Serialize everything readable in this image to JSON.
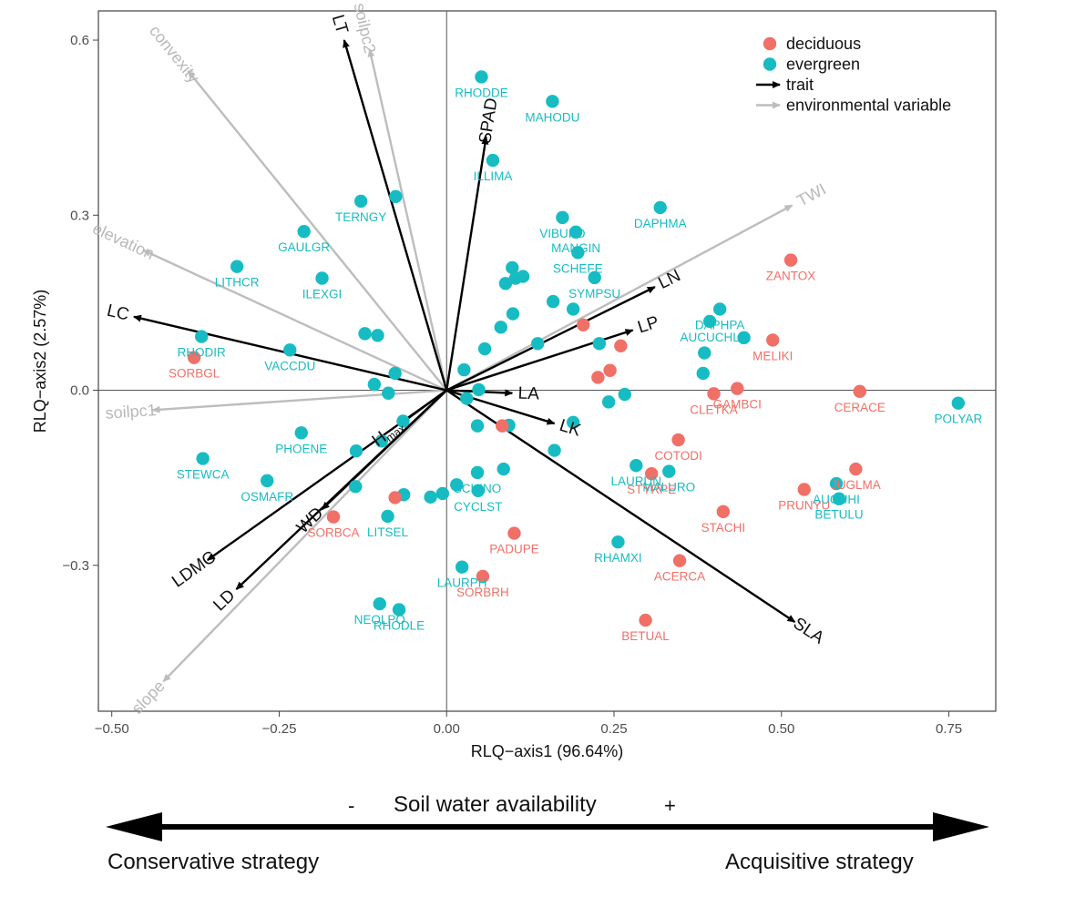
{
  "chart_data": {
    "type": "scatter",
    "xlabel": "RLQ−axis1 (96.64%)",
    "ylabel": "RLQ−axis2 (2.57%)",
    "xlim": [
      -0.52,
      0.82
    ],
    "ylim": [
      -0.55,
      0.65
    ],
    "xticks": [
      {
        "value": -0.5,
        "label": "−0.50"
      },
      {
        "value": -0.25,
        "label": "−0.25"
      },
      {
        "value": 0.0,
        "label": "0.00"
      },
      {
        "value": 0.25,
        "label": "0.25"
      },
      {
        "value": 0.5,
        "label": "0.50"
      },
      {
        "value": 0.75,
        "label": "0.75"
      }
    ],
    "yticks": [
      {
        "value": 0.6,
        "label": "0.6"
      },
      {
        "value": 0.3,
        "label": "0.3"
      },
      {
        "value": 0.0,
        "label": "0.0"
      },
      {
        "value": -0.3,
        "label": "−0.3"
      }
    ],
    "colors": {
      "deciduous": "#f07067",
      "evergreen": "#17bcc3",
      "trait": "#000000",
      "environmental": "#bdbdbd"
    },
    "legend": {
      "placement": "top-right",
      "entries": [
        {
          "kind": "deciduous",
          "label": "deciduous"
        },
        {
          "kind": "evergreen",
          "label": "evergreen"
        },
        {
          "kind": "trait",
          "label": "trait"
        },
        {
          "kind": "environmental",
          "label": "environmental variable"
        }
      ]
    },
    "species": [
      {
        "code": "RHODDE",
        "group": "evergreen",
        "x": 0.052,
        "y": 0.537
      },
      {
        "code": "MAHODU",
        "group": "evergreen",
        "x": 0.158,
        "y": 0.495
      },
      {
        "code": "ILLIMA",
        "group": "evergreen",
        "x": 0.069,
        "y": 0.394
      },
      {
        "code": "VIBUFO",
        "group": "evergreen",
        "x": 0.173,
        "y": 0.296
      },
      {
        "code": "MANGIN",
        "group": "evergreen",
        "x": 0.193,
        "y": 0.271
      },
      {
        "code": "DAPHMA",
        "group": "evergreen",
        "x": 0.319,
        "y": 0.313
      },
      {
        "code": "SCHEFE",
        "group": "evergreen",
        "x": 0.196,
        "y": 0.236
      },
      {
        "code": "SYMPSU",
        "group": "evergreen",
        "x": 0.221,
        "y": 0.193
      },
      {
        "code": "TERNGY",
        "group": "evergreen",
        "x": -0.128,
        "y": 0.324
      },
      {
        "code": "",
        "group": "evergreen",
        "x": -0.076,
        "y": 0.332
      },
      {
        "code": "GAULGR",
        "group": "evergreen",
        "x": -0.213,
        "y": 0.272
      },
      {
        "code": "LITHCR",
        "group": "evergreen",
        "x": -0.313,
        "y": 0.212
      },
      {
        "code": "ILEXGI",
        "group": "evergreen",
        "x": -0.186,
        "y": 0.192
      },
      {
        "code": "RHODIR",
        "group": "evergreen",
        "x": -0.366,
        "y": 0.092
      },
      {
        "code": "VACCDU",
        "group": "evergreen",
        "x": -0.234,
        "y": 0.069
      },
      {
        "code": "",
        "group": "evergreen",
        "x": -0.122,
        "y": 0.097
      },
      {
        "code": "",
        "group": "evergreen",
        "x": -0.103,
        "y": 0.094
      },
      {
        "code": "",
        "group": "evergreen",
        "x": -0.077,
        "y": 0.029
      },
      {
        "code": "",
        "group": "evergreen",
        "x": -0.108,
        "y": 0.01
      },
      {
        "code": "",
        "group": "evergreen",
        "x": -0.087,
        "y": -0.005
      },
      {
        "code": "",
        "group": "evergreen",
        "x": 0.098,
        "y": 0.21
      },
      {
        "code": "",
        "group": "evergreen",
        "x": 0.088,
        "y": 0.183
      },
      {
        "code": "",
        "group": "evergreen",
        "x": 0.103,
        "y": 0.192
      },
      {
        "code": "",
        "group": "evergreen",
        "x": 0.114,
        "y": 0.195
      },
      {
        "code": "",
        "group": "evergreen",
        "x": 0.099,
        "y": 0.131
      },
      {
        "code": "",
        "group": "evergreen",
        "x": 0.081,
        "y": 0.108
      },
      {
        "code": "",
        "group": "evergreen",
        "x": 0.057,
        "y": 0.071
      },
      {
        "code": "",
        "group": "evergreen",
        "x": 0.136,
        "y": 0.08
      },
      {
        "code": "",
        "group": "evergreen",
        "x": 0.159,
        "y": 0.152
      },
      {
        "code": "",
        "group": "evergreen",
        "x": 0.189,
        "y": 0.139
      },
      {
        "code": "",
        "group": "evergreen",
        "x": 0.228,
        "y": 0.08
      },
      {
        "code": "",
        "group": "evergreen",
        "x": 0.026,
        "y": 0.035
      },
      {
        "code": "",
        "group": "evergreen",
        "x": 0.048,
        "y": 0.001
      },
      {
        "code": "",
        "group": "evergreen",
        "x": 0.03,
        "y": -0.014
      },
      {
        "code": "",
        "group": "evergreen",
        "x": 0.242,
        "y": -0.02
      },
      {
        "code": "",
        "group": "evergreen",
        "x": 0.266,
        "y": -0.007
      },
      {
        "code": "",
        "group": "evergreen",
        "x": 0.046,
        "y": -0.061
      },
      {
        "code": "",
        "group": "evergreen",
        "x": 0.093,
        "y": -0.06
      },
      {
        "code": "",
        "group": "evergreen",
        "x": 0.189,
        "y": -0.055
      },
      {
        "code": "",
        "group": "evergreen",
        "x": 0.161,
        "y": -0.103
      },
      {
        "code": "DAPHPA",
        "group": "evergreen",
        "x": 0.408,
        "y": 0.139
      },
      {
        "code": "AUCUCHL",
        "group": "evergreen",
        "x": 0.393,
        "y": 0.118
      },
      {
        "code": "",
        "group": "evergreen",
        "x": 0.444,
        "y": 0.09
      },
      {
        "code": "",
        "group": "evergreen",
        "x": 0.385,
        "y": 0.064
      },
      {
        "code": "",
        "group": "evergreen",
        "x": 0.383,
        "y": 0.029
      },
      {
        "code": "POLYAR",
        "group": "evergreen",
        "x": 0.764,
        "y": -0.022
      },
      {
        "code": "LAURUN",
        "group": "evergreen",
        "x": 0.283,
        "y": -0.129
      },
      {
        "code": "MALURO",
        "group": "evergreen",
        "x": 0.332,
        "y": -0.139
      },
      {
        "code": "AUCUHI",
        "group": "evergreen",
        "x": 0.582,
        "y": -0.16
      },
      {
        "code": "BETULU",
        "group": "evergreen",
        "x": 0.586,
        "y": -0.186
      },
      {
        "code": "RHAMXI",
        "group": "evergreen",
        "x": 0.256,
        "y": -0.26
      },
      {
        "code": "SCHINO",
        "group": "evergreen",
        "x": 0.046,
        "y": -0.141
      },
      {
        "code": "",
        "group": "evergreen",
        "x": 0.085,
        "y": -0.135
      },
      {
        "code": "CYCLST",
        "group": "evergreen",
        "x": 0.047,
        "y": -0.172
      },
      {
        "code": "",
        "group": "evergreen",
        "x": 0.015,
        "y": -0.162
      },
      {
        "code": "",
        "group": "evergreen",
        "x": -0.006,
        "y": -0.177
      },
      {
        "code": "",
        "group": "evergreen",
        "x": -0.024,
        "y": -0.183
      },
      {
        "code": "",
        "group": "evergreen",
        "x": -0.065,
        "y": -0.053
      },
      {
        "code": "",
        "group": "evergreen",
        "x": -0.097,
        "y": -0.087
      },
      {
        "code": "",
        "group": "evergreen",
        "x": -0.135,
        "y": -0.104
      },
      {
        "code": "PHOENE",
        "group": "evergreen",
        "x": -0.217,
        "y": -0.073
      },
      {
        "code": "STEWCA",
        "group": "evergreen",
        "x": -0.364,
        "y": -0.117
      },
      {
        "code": "OSMAFR",
        "group": "evergreen",
        "x": -0.268,
        "y": -0.155
      },
      {
        "code": "",
        "group": "evergreen",
        "x": -0.136,
        "y": -0.165
      },
      {
        "code": "",
        "group": "evergreen",
        "x": -0.064,
        "y": -0.179
      },
      {
        "code": "LITSEL",
        "group": "evergreen",
        "x": -0.088,
        "y": -0.216
      },
      {
        "code": "LAURPH",
        "group": "evergreen",
        "x": 0.023,
        "y": -0.303
      },
      {
        "code": "NEOLPO",
        "group": "evergreen",
        "x": -0.1,
        "y": -0.366
      },
      {
        "code": "RHODLE",
        "group": "evergreen",
        "x": -0.071,
        "y": -0.376
      },
      {
        "code": "ZANTOX",
        "group": "deciduous",
        "x": 0.514,
        "y": 0.223
      },
      {
        "code": "MELIKI",
        "group": "deciduous",
        "x": 0.487,
        "y": 0.086
      },
      {
        "code": "",
        "group": "deciduous",
        "x": 0.204,
        "y": 0.112
      },
      {
        "code": "",
        "group": "deciduous",
        "x": 0.26,
        "y": 0.076
      },
      {
        "code": "",
        "group": "deciduous",
        "x": 0.244,
        "y": 0.034
      },
      {
        "code": "",
        "group": "deciduous",
        "x": 0.226,
        "y": 0.022
      },
      {
        "code": "GAMBCI",
        "group": "deciduous",
        "x": 0.434,
        "y": 0.003
      },
      {
        "code": "CLETKA",
        "group": "deciduous",
        "x": 0.399,
        "y": -0.006
      },
      {
        "code": "CERACE",
        "group": "deciduous",
        "x": 0.617,
        "y": -0.002
      },
      {
        "code": "SORBGL",
        "group": "deciduous",
        "x": -0.377,
        "y": 0.056
      },
      {
        "code": "COTODI",
        "group": "deciduous",
        "x": 0.346,
        "y": -0.085
      },
      {
        "code": "STYRPE",
        "group": "deciduous",
        "x": 0.306,
        "y": -0.143
      },
      {
        "code": "JUGLMA",
        "group": "deciduous",
        "x": 0.611,
        "y": -0.135
      },
      {
        "code": "PRUNYU",
        "group": "deciduous",
        "x": 0.534,
        "y": -0.17
      },
      {
        "code": "STACHI",
        "group": "deciduous",
        "x": 0.413,
        "y": -0.208
      },
      {
        "code": "",
        "group": "deciduous",
        "x": 0.083,
        "y": -0.061
      },
      {
        "code": "PADUPE",
        "group": "deciduous",
        "x": 0.101,
        "y": -0.245
      },
      {
        "code": "",
        "group": "deciduous",
        "x": -0.077,
        "y": -0.184
      },
      {
        "code": "SORBCA",
        "group": "deciduous",
        "x": -0.169,
        "y": -0.217
      },
      {
        "code": "SORBRH",
        "group": "deciduous",
        "x": 0.054,
        "y": -0.319
      },
      {
        "code": "ACERCA",
        "group": "deciduous",
        "x": 0.348,
        "y": -0.292
      },
      {
        "code": "BETUAL",
        "group": "deciduous",
        "x": 0.297,
        "y": -0.394
      }
    ],
    "traits": [
      {
        "name": "LT",
        "x": -0.153,
        "y": 0.6
      },
      {
        "name": "SPAD",
        "x": 0.059,
        "y": 0.434
      },
      {
        "name": "LC",
        "x": -0.467,
        "y": 0.126
      },
      {
        "name": "LN",
        "x": 0.311,
        "y": 0.177
      },
      {
        "name": "LP",
        "x": 0.278,
        "y": 0.103
      },
      {
        "name": "LA",
        "x": 0.098,
        "y": -0.005
      },
      {
        "name": "LK",
        "x": 0.161,
        "y": -0.057
      },
      {
        "name": "H",
        "sub": "max",
        "x": -0.068,
        "y": -0.057
      },
      {
        "name": "WD",
        "x": -0.186,
        "y": -0.204
      },
      {
        "name": "LDMC",
        "x": -0.357,
        "y": -0.291
      },
      {
        "name": "LD",
        "x": -0.314,
        "y": -0.341
      },
      {
        "name": "SLA",
        "x": 0.52,
        "y": -0.397
      }
    ],
    "environment": [
      {
        "name": "convexity",
        "x": -0.386,
        "y": 0.547
      },
      {
        "name": "soilpc2",
        "x": -0.115,
        "y": 0.584
      },
      {
        "name": "TWI",
        "x": 0.516,
        "y": 0.317
      },
      {
        "name": "elevation",
        "x": -0.453,
        "y": 0.24
      },
      {
        "name": "soilpc1",
        "x": -0.439,
        "y": -0.034
      },
      {
        "name": "slope",
        "x": -0.423,
        "y": -0.499
      }
    ]
  },
  "caption": {
    "minus": "-",
    "gradient_label": "Soil water availability",
    "plus": "+",
    "left_label": "Conservative strategy",
    "right_label": "Acquisitive strategy"
  }
}
